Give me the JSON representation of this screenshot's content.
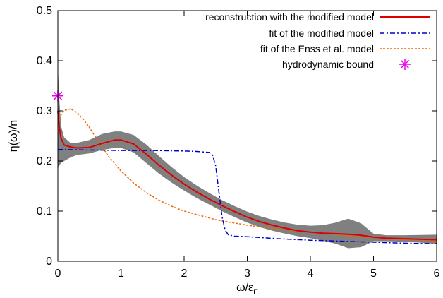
{
  "chart_data": {
    "type": "line",
    "title": "",
    "xlabel": "ω/ε_F",
    "xlabel_main": "ω/ε",
    "xlabel_sub": "F",
    "ylabel": "η(ω)/n",
    "xlim": [
      0,
      6
    ],
    "ylim": [
      0,
      0.5
    ],
    "x_ticks": [
      0,
      1,
      2,
      3,
      4,
      5,
      6
    ],
    "y_ticks": [
      0,
      0.1,
      0.2,
      0.3,
      0.4,
      0.5
    ],
    "x_tick_labels": [
      "0",
      "1",
      "2",
      "3",
      "4",
      "5",
      "6"
    ],
    "y_tick_labels": [
      "0",
      "0.1",
      "0.2",
      "0.3",
      "0.4",
      "0.5"
    ],
    "grid": false,
    "legend_position": "top-right",
    "series": [
      {
        "name": "reconstruction with the modified model",
        "color": "#dd0000",
        "style": "solid",
        "x": [
          0,
          0.02,
          0.05,
          0.1,
          0.2,
          0.3,
          0.5,
          0.7,
          0.9,
          1.0,
          1.2,
          1.4,
          1.6,
          1.8,
          2.0,
          2.2,
          2.4,
          2.6,
          2.8,
          3.0,
          3.2,
          3.4,
          3.6,
          3.8,
          4.0,
          4.2,
          4.4,
          4.6,
          4.8,
          5.0,
          5.2,
          5.5,
          6.0
        ],
        "y": [
          0.3,
          0.27,
          0.245,
          0.232,
          0.228,
          0.226,
          0.227,
          0.235,
          0.242,
          0.242,
          0.234,
          0.214,
          0.192,
          0.172,
          0.154,
          0.138,
          0.124,
          0.111,
          0.099,
          0.088,
          0.079,
          0.072,
          0.066,
          0.061,
          0.058,
          0.056,
          0.055,
          0.054,
          0.052,
          0.048,
          0.046,
          0.045,
          0.043
        ]
      },
      {
        "name": "fit of the modified model",
        "color": "#0000cc",
        "style": "dashdot",
        "x": [
          0,
          0.5,
          1.0,
          1.5,
          2.0,
          2.2,
          2.4,
          2.45,
          2.5,
          2.55,
          2.6,
          2.65,
          2.7,
          2.8,
          3.0,
          3.5,
          4.0,
          4.5,
          5.0,
          5.5,
          6.0
        ],
        "y": [
          0.223,
          0.222,
          0.221,
          0.221,
          0.22,
          0.219,
          0.217,
          0.212,
          0.19,
          0.14,
          0.09,
          0.062,
          0.053,
          0.05,
          0.049,
          0.045,
          0.042,
          0.04,
          0.038,
          0.036,
          0.035
        ]
      },
      {
        "name": "fit of the Enss et al. model",
        "color": "#ee6600",
        "style": "dashed",
        "x": [
          0,
          0.05,
          0.1,
          0.2,
          0.3,
          0.4,
          0.5,
          0.6,
          0.8,
          1.0,
          1.2,
          1.4,
          1.6,
          1.8,
          2.0,
          2.5,
          3.0,
          3.5,
          4.0,
          4.5,
          5.0,
          5.5,
          6.0
        ],
        "y": [
          0.27,
          0.292,
          0.301,
          0.304,
          0.297,
          0.284,
          0.267,
          0.247,
          0.21,
          0.18,
          0.156,
          0.137,
          0.122,
          0.11,
          0.1,
          0.083,
          0.072,
          0.064,
          0.058,
          0.052,
          0.047,
          0.043,
          0.04
        ]
      }
    ],
    "uncertainty_band": {
      "color": "#808080",
      "x": [
        0,
        0.02,
        0.05,
        0.1,
        0.2,
        0.3,
        0.5,
        0.7,
        0.9,
        1.0,
        1.2,
        1.4,
        1.6,
        1.8,
        2.0,
        2.2,
        2.4,
        2.6,
        2.8,
        3.0,
        3.2,
        3.4,
        3.6,
        3.8,
        4.0,
        4.2,
        4.4,
        4.6,
        4.8,
        5.0,
        5.2,
        5.5,
        6.0
      ],
      "lower": [
        0.185,
        0.19,
        0.196,
        0.2,
        0.207,
        0.212,
        0.215,
        0.222,
        0.226,
        0.226,
        0.217,
        0.196,
        0.175,
        0.157,
        0.141,
        0.126,
        0.113,
        0.1,
        0.088,
        0.077,
        0.068,
        0.061,
        0.055,
        0.05,
        0.046,
        0.041,
        0.035,
        0.026,
        0.028,
        0.04,
        0.04,
        0.039,
        0.035
      ],
      "upper": [
        0.39,
        0.33,
        0.27,
        0.247,
        0.236,
        0.236,
        0.242,
        0.254,
        0.259,
        0.259,
        0.252,
        0.233,
        0.21,
        0.188,
        0.168,
        0.151,
        0.136,
        0.122,
        0.11,
        0.099,
        0.09,
        0.083,
        0.077,
        0.073,
        0.071,
        0.072,
        0.077,
        0.085,
        0.076,
        0.055,
        0.052,
        0.052,
        0.053
      ]
    },
    "points": [
      {
        "name": "hydrodynamic bound",
        "x": 0,
        "y": 0.33,
        "color": "#ee00ee",
        "marker": "asterisk"
      }
    ]
  }
}
